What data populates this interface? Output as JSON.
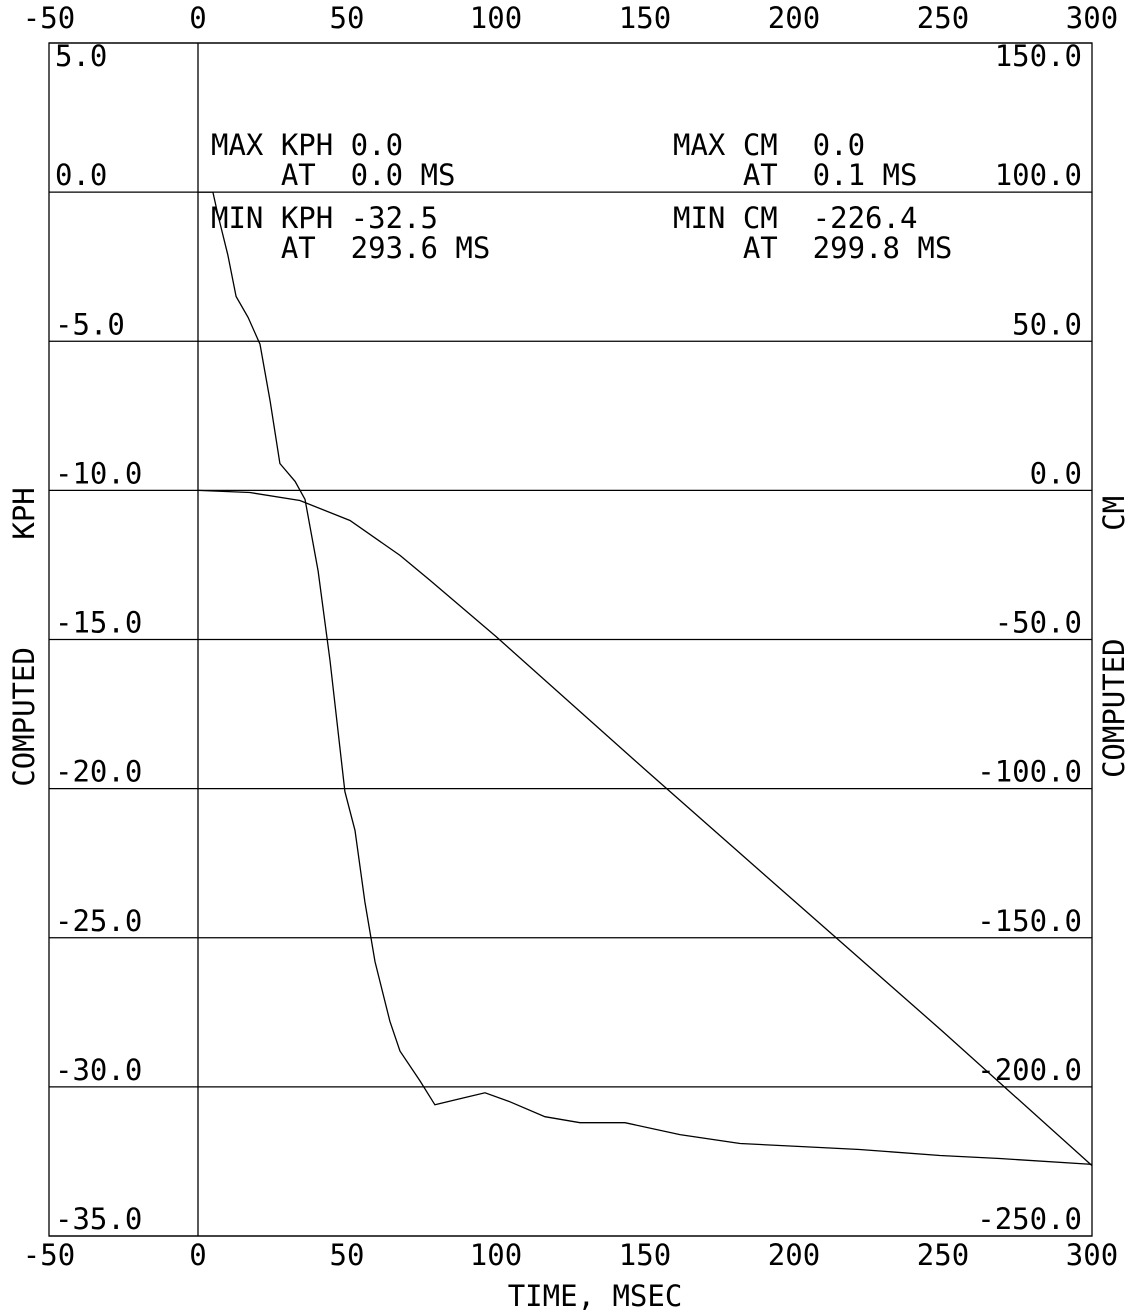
{
  "chart_data": {
    "type": "line",
    "xlabel": "TIME, MSEC",
    "ylabel": "COMPUTED KPH",
    "y2label": "COMPUTED CM",
    "xlim": [
      -50,
      300
    ],
    "xticks": [
      -50,
      0,
      50,
      100,
      150,
      200,
      250,
      300
    ],
    "ylim": [
      -35,
      5
    ],
    "yticks": [
      {
        "value": 5,
        "label": "5.0"
      },
      {
        "value": 0,
        "label": "0.0"
      },
      {
        "value": -5,
        "label": "-5.0"
      },
      {
        "value": -10,
        "label": "-10.0"
      },
      {
        "value": -15,
        "label": "-15.0"
      },
      {
        "value": -20,
        "label": "-20.0"
      },
      {
        "value": -25,
        "label": "-25.0"
      },
      {
        "value": -30,
        "label": "-30.0"
      },
      {
        "value": -35,
        "label": "-35.0"
      }
    ],
    "y2lim": [
      -250,
      150
    ],
    "y2ticks": [
      {
        "value": 150,
        "label": "150.0"
      },
      {
        "value": 100,
        "label": "100.0"
      },
      {
        "value": 50,
        "label": "50.0"
      },
      {
        "value": 0,
        "label": "0.0"
      },
      {
        "value": -50,
        "label": "-50.0"
      },
      {
        "value": -100,
        "label": "-100.0"
      },
      {
        "value": -150,
        "label": "-150.0"
      },
      {
        "value": -200,
        "label": "-200.0"
      },
      {
        "value": -250,
        "label": "-250.0"
      }
    ],
    "grid": true,
    "annotations": [
      {
        "lines": [
          "MAX KPH 0.0",
          "    AT  0.0 MS"
        ]
      },
      {
        "lines": [
          "MIN KPH -32.5",
          "    AT  293.6 MS"
        ]
      },
      {
        "lines": [
          "MAX CM  0.0",
          "    AT  0.1 MS"
        ]
      },
      {
        "lines": [
          "MIN CM  -226.4",
          "    AT  299.8 MS"
        ]
      }
    ],
    "series": [
      {
        "color": "#000000",
        "x": [
          0,
          5,
          6.7,
          10,
          12.8,
          16.8,
          20.8,
          24.2,
          27.5,
          32.6,
          35.9,
          40.3,
          44.3,
          49.3,
          52.7,
          56,
          59.4,
          64.4,
          67.8,
          74.5,
          79.5,
          87.9,
          96.3,
          104.7,
          116.4,
          128.2,
          143.3,
          161.7,
          181.9,
          202,
          222,
          249,
          269,
          300
        ],
        "values": [
          0,
          0,
          -0.77,
          -2.1,
          -3.5,
          -4.2,
          -5.1,
          -7.0,
          -9.1,
          -9.7,
          -10.3,
          -12.7,
          -15.7,
          -20.1,
          -21.4,
          -23.8,
          -25.8,
          -27.8,
          -28.8,
          -29.8,
          -30.6,
          -30.4,
          -30.2,
          -30.5,
          -31.0,
          -31.2,
          -31.2,
          -31.6,
          -31.9,
          -32.0,
          -32.1,
          -32.3,
          -32.4,
          -32.6
        ]
      },
      {
        "color": "#000000",
        "axis": "y2",
        "x": [
          0,
          17.4,
          34.2,
          51,
          67.8,
          77.9,
          100,
          150,
          200,
          250,
          300
        ],
        "values": [
          0,
          -0.7,
          -3.4,
          -10.1,
          -21.8,
          -30.2,
          -49,
          -93.6,
          -137.6,
          -181.5,
          -226.4
        ]
      }
    ]
  }
}
